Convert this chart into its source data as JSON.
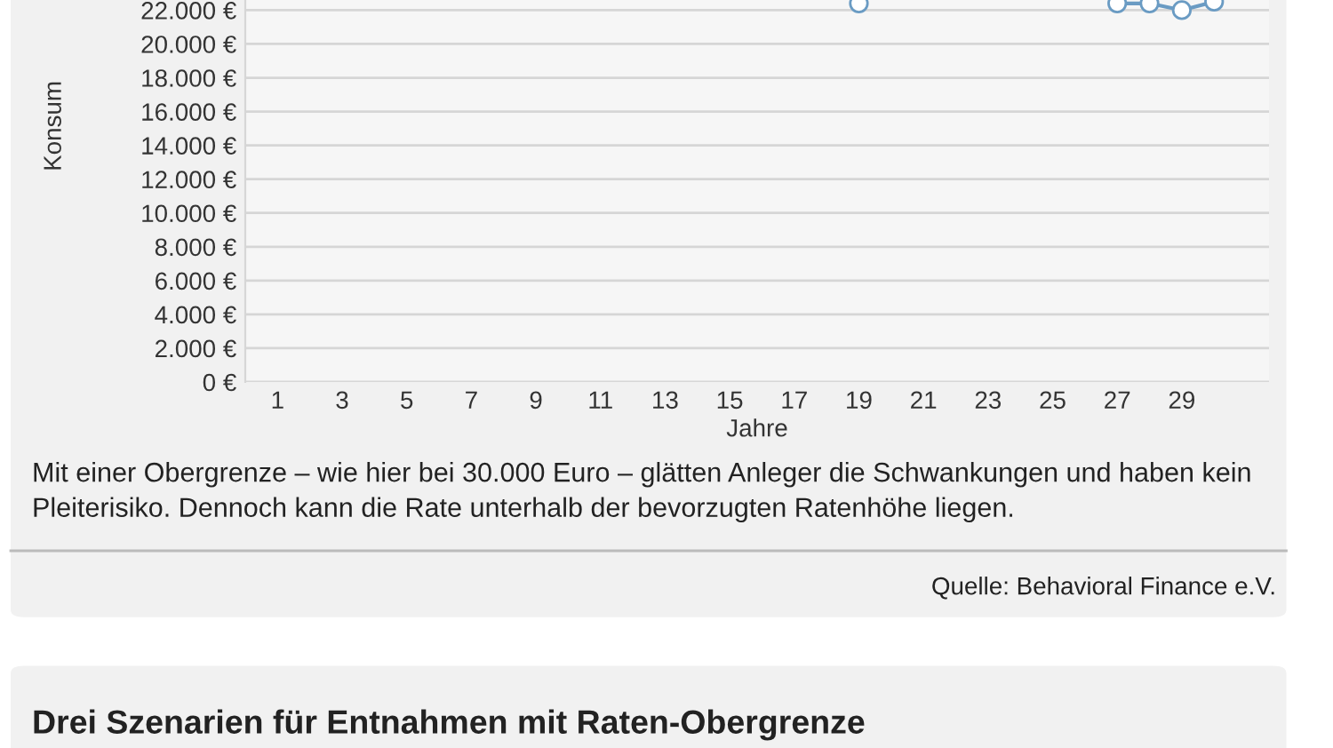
{
  "chart_data": {
    "type": "line",
    "xlabel": "Jahre",
    "ylabel": "Konsum",
    "series": [
      {
        "color": "#6a9bc3",
        "x": [
          19
        ],
        "values": [
          22400
        ]
      },
      {
        "color": "#6a9bc3",
        "x": [
          27,
          28,
          29,
          30
        ],
        "values": [
          22400,
          22400,
          22000,
          22500
        ]
      }
    ],
    "xlim": [
      0,
      31.7
    ],
    "xticks": [
      1,
      3,
      5,
      7,
      9,
      11,
      13,
      15,
      17,
      19,
      21,
      23,
      25,
      27,
      29
    ],
    "ylim": [
      0,
      22600
    ],
    "yticks": [
      {
        "value": 0,
        "label": "0 €"
      },
      {
        "value": 2000,
        "label": "2.000 €"
      },
      {
        "value": 4000,
        "label": "4.000 €"
      },
      {
        "value": 6000,
        "label": "6.000 €"
      },
      {
        "value": 8000,
        "label": "8.000 €"
      },
      {
        "value": 10000,
        "label": "10.000 €"
      },
      {
        "value": 12000,
        "label": "12.000 €"
      },
      {
        "value": 14000,
        "label": "14.000 €"
      },
      {
        "value": 16000,
        "label": "16.000 €"
      },
      {
        "value": 18000,
        "label": "18.000 €"
      },
      {
        "value": 20000,
        "label": "20.000 €"
      },
      {
        "value": 22000,
        "label": "22.000 €"
      }
    ],
    "grid": "y",
    "marker": "circle",
    "line_style": "solid",
    "legend": false,
    "annotations": [
      "Mit einer Obergrenze – wie hier bei 30.000 Euro – glätten Anleger die Schwankungen und haben kein Pleiterisiko. Dennoch kann die Rate unterhalb der bevorzugten Ratenhöhe liegen.",
      "Quelle: Behavioral Finance e.V.",
      "Drei Szenarien für Entnahmen mit Raten-Obergrenze"
    ]
  }
}
